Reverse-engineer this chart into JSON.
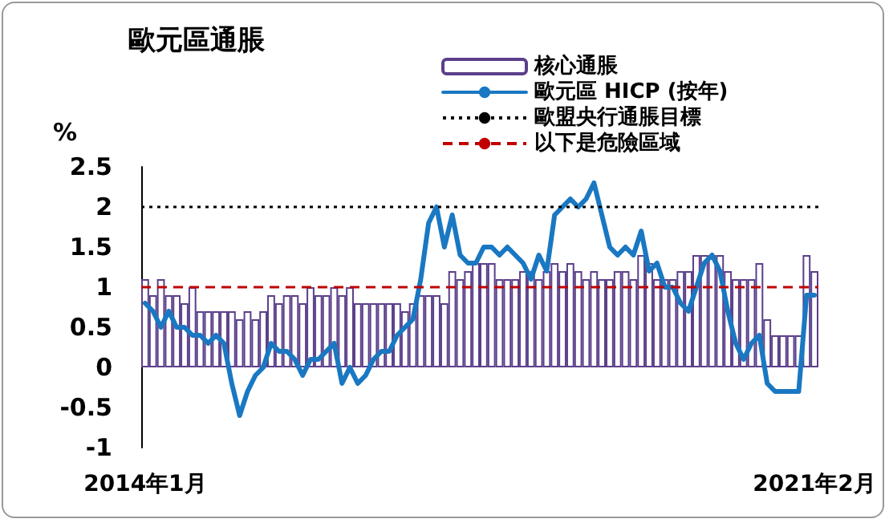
{
  "chart_data": {
    "type": "bar",
    "title": "歐元區通脹",
    "ylabel": "%",
    "categories": [
      "2014年1月",
      null,
      null,
      null,
      null,
      null,
      null,
      null,
      null,
      null,
      null,
      null,
      null,
      null,
      null,
      null,
      null,
      null,
      null,
      null,
      null,
      null,
      null,
      null,
      null,
      null,
      null,
      null,
      null,
      null,
      null,
      null,
      null,
      null,
      null,
      null,
      null,
      null,
      null,
      null,
      null,
      null,
      null,
      null,
      null,
      null,
      null,
      null,
      null,
      null,
      null,
      null,
      null,
      null,
      null,
      null,
      null,
      null,
      null,
      null,
      null,
      null,
      null,
      null,
      null,
      null,
      null,
      null,
      null,
      null,
      null,
      null,
      null,
      null,
      null,
      null,
      null,
      null,
      null,
      null,
      null,
      null,
      null,
      null,
      null,
      "2021年2月"
    ],
    "series": [
      {
        "name": "核心通脹",
        "color": "#ffffff",
        "values": [
          1.1,
          0.9,
          1.1,
          0.9,
          0.9,
          0.8,
          1.0,
          0.7,
          0.7,
          0.7,
          0.7,
          0.7,
          0.6,
          0.7,
          0.6,
          0.7,
          0.9,
          0.8,
          0.9,
          0.9,
          0.8,
          1.0,
          0.9,
          0.9,
          1.0,
          0.9,
          1.0,
          0.8,
          0.8,
          0.8,
          0.8,
          0.8,
          0.8,
          0.7,
          0.8,
          0.9,
          0.9,
          0.9,
          0.8,
          1.2,
          1.1,
          1.2,
          1.3,
          1.3,
          1.3,
          1.1,
          1.1,
          1.1,
          1.2,
          1.2,
          1.1,
          1.2,
          1.3,
          1.2,
          1.3,
          1.2,
          1.1,
          1.2,
          1.1,
          1.1,
          1.2,
          1.2,
          1.1,
          1.4,
          1.3,
          1.1,
          1.1,
          1.1,
          1.2,
          1.2,
          1.4,
          1.4,
          1.4,
          1.4,
          1.2,
          1.1,
          1.1,
          1.1,
          1.3,
          0.6,
          0.4,
          0.4,
          0.4,
          0.4,
          1.4,
          1.2
        ]
      },
      {
        "name": "歐元區 HICP (按年)",
        "type": "line",
        "color": "#1a78c2",
        "marker": "none",
        "line_style": "solid",
        "values": [
          0.8,
          0.7,
          0.5,
          0.7,
          0.5,
          0.5,
          0.4,
          0.4,
          0.3,
          0.4,
          0.3,
          -0.2,
          -0.6,
          -0.3,
          -0.1,
          0.0,
          0.3,
          0.2,
          0.2,
          0.1,
          -0.1,
          0.1,
          0.1,
          0.2,
          0.3,
          -0.2,
          0.0,
          -0.2,
          -0.1,
          0.1,
          0.2,
          0.2,
          0.4,
          0.5,
          0.6,
          1.1,
          1.8,
          2.0,
          1.5,
          1.9,
          1.4,
          1.3,
          1.3,
          1.5,
          1.5,
          1.4,
          1.5,
          1.4,
          1.3,
          1.1,
          1.4,
          1.2,
          1.9,
          2.0,
          2.1,
          2.0,
          2.1,
          2.3,
          1.9,
          1.5,
          1.4,
          1.5,
          1.4,
          1.7,
          1.2,
          1.3,
          1.0,
          1.0,
          0.8,
          0.7,
          1.0,
          1.3,
          1.4,
          1.2,
          0.7,
          0.3,
          0.1,
          0.3,
          0.4,
          -0.2,
          -0.3,
          -0.3,
          -0.3,
          -0.3,
          0.9,
          0.9
        ]
      }
    ],
    "ref_lines": [
      {
        "axis": "y",
        "value": 2,
        "label": "歐盟央行通脹目標",
        "color": "#000000",
        "line_style": "dotted"
      },
      {
        "axis": "y",
        "value": 1,
        "label": "以下是危險區域",
        "color": "#c00000",
        "line_style": "dashed"
      }
    ],
    "ylim": [
      -1,
      2.5
    ],
    "yticks": [
      -1,
      -0.5,
      0,
      0.5,
      1,
      1.5,
      2,
      2.5
    ],
    "grid": false,
    "legend": "top right"
  }
}
